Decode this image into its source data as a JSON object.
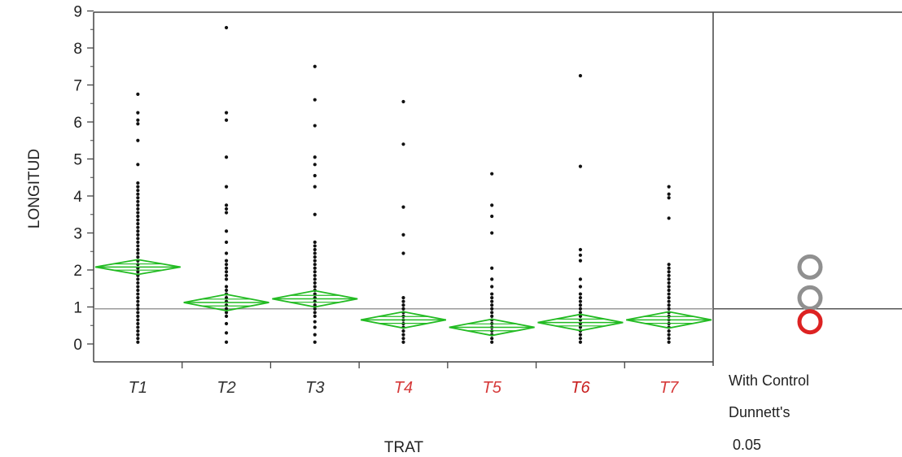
{
  "chart_data": {
    "type": "scatter",
    "subtype": "one-way means diamonds with Dunnett's comparison circles",
    "xlabel": "TRAT",
    "ylabel": "LONGITUD",
    "ylim": [
      0,
      9
    ],
    "yticks": [
      0,
      1,
      2,
      3,
      4,
      5,
      6,
      7,
      8,
      9
    ],
    "grid": false,
    "reference_line_y": 0.95,
    "categories": [
      "T1",
      "T2",
      "T3",
      "T4",
      "T5",
      "T6",
      "T7"
    ],
    "category_label_colors": [
      "#333333",
      "#333333",
      "#333333",
      "#d63a3a",
      "#d63a3a",
      "#c81e1e",
      "#d63a3a"
    ],
    "means": [
      2.08,
      1.12,
      1.22,
      0.65,
      0.45,
      0.58,
      0.65
    ],
    "ci_halfwidth": [
      0.2,
      0.22,
      0.22,
      0.22,
      0.22,
      0.22,
      0.22
    ],
    "points": [
      [
        0.05,
        0.15,
        0.25,
        0.35,
        0.45,
        0.55,
        0.65,
        0.75,
        0.85,
        0.95,
        1.05,
        1.15,
        1.25,
        1.35,
        1.45,
        1.55,
        1.65,
        1.75,
        1.85,
        1.95,
        2.05,
        2.15,
        2.25,
        2.35,
        2.45,
        2.55,
        2.65,
        2.75,
        2.85,
        2.95,
        3.05,
        3.15,
        3.25,
        3.35,
        3.45,
        3.55,
        3.65,
        3.75,
        3.85,
        3.95,
        4.05,
        4.15,
        4.25,
        4.35,
        4.85,
        5.5,
        5.95,
        6.05,
        6.25,
        6.75
      ],
      [
        0.05,
        0.3,
        0.55,
        0.75,
        0.85,
        0.95,
        1.05,
        1.15,
        1.25,
        1.35,
        1.45,
        1.55,
        1.75,
        1.85,
        1.95,
        2.05,
        2.15,
        2.25,
        2.45,
        2.75,
        3.05,
        3.55,
        3.65,
        3.75,
        4.25,
        5.05,
        6.05,
        6.25,
        8.55
      ],
      [
        0.05,
        0.25,
        0.45,
        0.6,
        0.75,
        0.85,
        0.95,
        1.05,
        1.15,
        1.25,
        1.35,
        1.45,
        1.55,
        1.65,
        1.75,
        1.85,
        1.95,
        2.05,
        2.15,
        2.25,
        2.35,
        2.45,
        2.55,
        2.65,
        2.75,
        3.5,
        4.25,
        4.55,
        4.85,
        5.05,
        5.9,
        6.6,
        7.5
      ],
      [
        0.05,
        0.15,
        0.25,
        0.35,
        0.45,
        0.55,
        0.65,
        0.75,
        0.85,
        0.95,
        1.05,
        1.15,
        1.25,
        2.45,
        2.95,
        3.7,
        5.4,
        6.55
      ],
      [
        0.05,
        0.15,
        0.25,
        0.35,
        0.45,
        0.55,
        0.65,
        0.75,
        0.85,
        0.95,
        1.05,
        1.15,
        1.25,
        1.35,
        1.55,
        1.75,
        2.05,
        3.0,
        3.45,
        3.75,
        4.6
      ],
      [
        0.05,
        0.15,
        0.25,
        0.35,
        0.45,
        0.55,
        0.65,
        0.75,
        0.85,
        0.95,
        1.05,
        1.15,
        1.25,
        1.35,
        1.55,
        1.75,
        2.25,
        2.4,
        2.55,
        4.8,
        7.25
      ],
      [
        0.05,
        0.15,
        0.25,
        0.35,
        0.45,
        0.55,
        0.65,
        0.75,
        0.85,
        0.95,
        1.05,
        1.15,
        1.25,
        1.35,
        1.45,
        1.55,
        1.65,
        1.75,
        1.85,
        1.95,
        2.05,
        2.15,
        3.4,
        3.95,
        4.05,
        4.25
      ]
    ],
    "comparison_circles": [
      {
        "center": 2.08,
        "color": "#909090"
      },
      {
        "center": 1.2,
        "color": "#909090"
      },
      {
        "center": 0.6,
        "color": "#dd2222"
      }
    ],
    "colors": {
      "diamond": "#22bb22",
      "point": "#111111",
      "reference_line": "#9a9a9a",
      "axis": "#444444",
      "circle_gray": "#909090",
      "circle_red": "#dd2222"
    },
    "side_panel": {
      "line1": "With Control",
      "line2": "Dunnett's",
      "line3": "0.05"
    }
  }
}
